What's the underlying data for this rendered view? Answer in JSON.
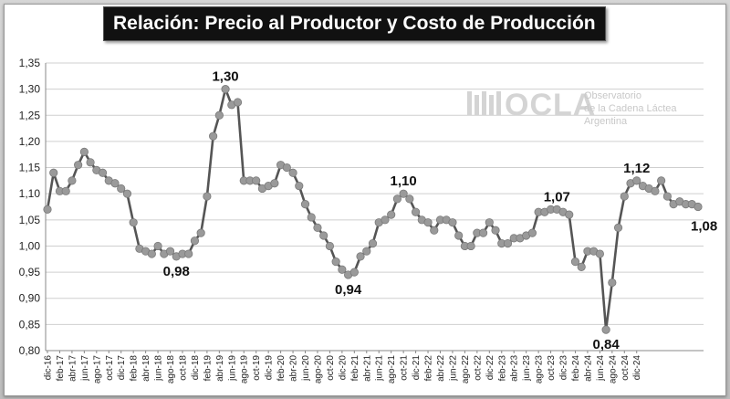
{
  "chart_data": {
    "type": "line",
    "title": "Relación: Precio al Productor y Costo de Producción",
    "ylim": [
      0.8,
      1.35
    ],
    "yticks": [
      "0,80",
      "0,85",
      "0,90",
      "0,95",
      "1,00",
      "1,05",
      "1,10",
      "1,15",
      "1,20",
      "1,25",
      "1,30",
      "1,35"
    ],
    "grid": true,
    "x_tick_labels": [
      "dic-16",
      "feb-17",
      "abr-17",
      "jun-17",
      "ago-17",
      "oct-17",
      "dic-17",
      "feb-18",
      "abr-18",
      "jun-18",
      "ago-18",
      "oct-18",
      "dic-18",
      "feb-19",
      "abr-19",
      "jun-19",
      "ago-19",
      "oct-19",
      "dic-19",
      "feb-20",
      "abr-20",
      "jun-20",
      "ago-20",
      "oct-20",
      "dic-20",
      "feb-21",
      "abr-21",
      "jun-21",
      "ago-21",
      "oct-21",
      "dic-21",
      "feb-22",
      "abr-22",
      "jun-22",
      "ago-22",
      "oct-22",
      "dic-22",
      "feb-23",
      "abr-23",
      "jun-23",
      "ago-23",
      "oct-23",
      "dic-23",
      "feb-24",
      "abr-24",
      "jun-24",
      "ago-24",
      "oct-24",
      "dic-24"
    ],
    "series": [
      {
        "color": "#555555",
        "marker_color": "#9a9a9a",
        "values": [
          1.07,
          1.14,
          1.105,
          1.105,
          1.125,
          1.155,
          1.18,
          1.16,
          1.145,
          1.14,
          1.125,
          1.12,
          1.11,
          1.1,
          1.045,
          0.995,
          0.99,
          0.985,
          1.0,
          0.985,
          0.99,
          0.98,
          0.985,
          0.985,
          1.01,
          1.025,
          1.095,
          1.21,
          1.25,
          1.3,
          1.27,
          1.275,
          1.125,
          1.125,
          1.125,
          1.11,
          1.115,
          1.12,
          1.155,
          1.15,
          1.14,
          1.115,
          1.08,
          1.055,
          1.035,
          1.02,
          1.0,
          0.97,
          0.955,
          0.945,
          0.95,
          0.98,
          0.99,
          1.005,
          1.045,
          1.05,
          1.06,
          1.09,
          1.1,
          1.09,
          1.065,
          1.05,
          1.045,
          1.03,
          1.05,
          1.05,
          1.045,
          1.02,
          1.0,
          1.0,
          1.025,
          1.025,
          1.045,
          1.03,
          1.005,
          1.005,
          1.015,
          1.015,
          1.02,
          1.025,
          1.065,
          1.065,
          1.07,
          1.07,
          1.065,
          1.06,
          0.97,
          0.96,
          0.99,
          0.99,
          0.985,
          0.84,
          0.93,
          1.035,
          1.095,
          1.12,
          1.125,
          1.115,
          1.11,
          1.105,
          1.125,
          1.095,
          1.08,
          1.085,
          1.08,
          1.08,
          1.075
        ]
      }
    ],
    "annotations": [
      {
        "index": 29,
        "text": "1,30",
        "pos": "above"
      },
      {
        "index": 21,
        "text": "0,98",
        "pos": "below"
      },
      {
        "index": 49,
        "text": "0,94",
        "pos": "below"
      },
      {
        "index": 58,
        "text": "1,10",
        "pos": "above"
      },
      {
        "index": 83,
        "text": "1,07",
        "pos": "above"
      },
      {
        "index": 91,
        "text": "0,84",
        "pos": "below"
      },
      {
        "index": 96,
        "text": "1,12",
        "pos": "above"
      },
      {
        "index": 106,
        "text": "1,08",
        "pos": "below-right"
      }
    ]
  },
  "watermark": {
    "logo": "OCLA",
    "line1": "Observatorio",
    "line2": "de la Cadena Láctea",
    "line3": "Argentina"
  }
}
